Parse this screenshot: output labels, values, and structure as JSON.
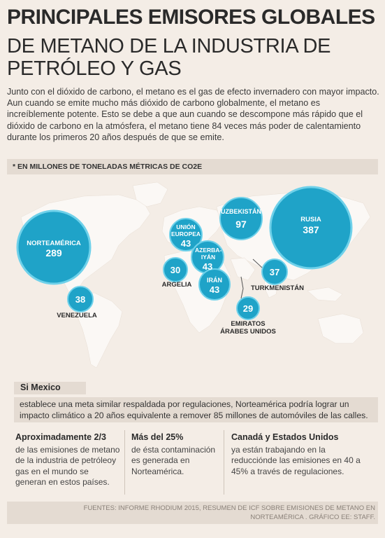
{
  "title_main": "PRINCIPALES EMISORES GLOBALES",
  "title_sub": "DE METANO DE LA INDUSTRIA DE PETRÓLEO Y GAS",
  "intro": "Junto con el dióxido de carbono, el metano es el gas de efecto invernadero con mayor impacto. Aun cuando se emite mucho más dióxido de carbono globalmente, el metano es increíblemente potente. Esto se debe a que aun cuando se descompone más rápido que el dióxido de carbono en la atmósfera, el metano tiene 84 veces más poder de calentamiento durante los primeros 20 años después de que se emite.",
  "units_note": "* EN MILLONES DE TONELADAS MÉTRICAS DE CO2E",
  "colors": {
    "bubble": "#1fa3c8",
    "bubble_edge": "#6fd1ea",
    "land": "#fbf8f5",
    "background": "#f4ede6"
  },
  "bubbles": [
    {
      "name": "NORTEAMÉRICA",
      "value": "289"
    },
    {
      "name": "RUSIA",
      "value": "387"
    },
    {
      "name": "UZBEKISTÁN",
      "value": "97"
    },
    {
      "name": "UNIÓN EUROPEA",
      "value": "43"
    },
    {
      "name": "AZERBA-IYÁN",
      "value": "43"
    },
    {
      "name": "IRÁN",
      "value": "43"
    },
    {
      "name": "",
      "value": "30",
      "label": "ARGELIA"
    },
    {
      "name": "",
      "value": "37",
      "label": "TURKMENISTÁN"
    },
    {
      "name": "",
      "value": "38",
      "label": "VENEZUELA"
    },
    {
      "name": "",
      "value": "29",
      "label": "EMIRATOS ÁRABES UNIDOS"
    }
  ],
  "mexico": {
    "title": "Si Mexico",
    "body": "establece una meta similar respaldada por regulaciones, Norteamérica podría lograr un impacto climático a 20 años equivalente a remover 85 millones de automóviles de las calles."
  },
  "facts": [
    {
      "title": "Aproximadamente 2/3",
      "text": "de las emisiones de metano de la industria de petróleoy gas en el mundo se generan en estos países."
    },
    {
      "title": "Más del 25%",
      "text": "de ésta contaminación es generada en Norteamérica."
    },
    {
      "title": "Canadá y Estados Unidos",
      "text": "ya están trabajando en la reducciónde las emisiones en 40 a 45% a través de regulaciones."
    }
  ],
  "sources": "FUENTES: INFORME RHODIUM 2015, RESUMEN DE ICF SOBRE EMISIONES DE METANO EN NORTEAMÉRICA . GRÁFICO EE: STAFF."
}
